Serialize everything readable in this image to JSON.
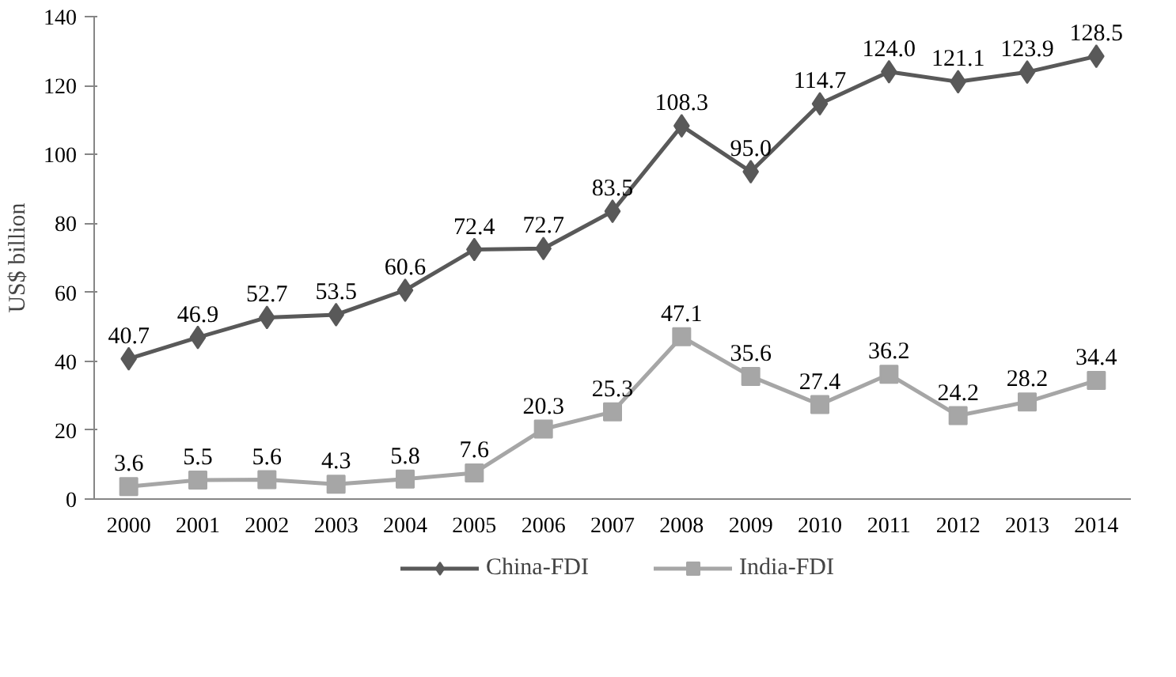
{
  "chart_data": {
    "type": "line",
    "ylabel": "US$ billion",
    "categories": [
      "2000",
      "2001",
      "2002",
      "2003",
      "2004",
      "2005",
      "2006",
      "2007",
      "2008",
      "2009",
      "2010",
      "2011",
      "2012",
      "2013",
      "2014"
    ],
    "series": [
      {
        "name": "China-FDI",
        "color": "#595959",
        "marker": "diamond",
        "values": [
          40.7,
          46.9,
          52.7,
          53.5,
          60.6,
          72.4,
          72.7,
          83.5,
          108.3,
          95.0,
          114.7,
          124.0,
          121.1,
          123.9,
          128.5
        ],
        "value_labels": [
          "40.7",
          "46.9",
          "52.7",
          "53.5",
          "60.6",
          "72.4",
          "72.7",
          "83.5",
          "108.3",
          "95.0",
          "114.7",
          "124.0",
          "121.1",
          "123.9",
          "128.5"
        ]
      },
      {
        "name": "India-FDI",
        "color": "#a6a6a6",
        "marker": "square",
        "values": [
          3.6,
          5.5,
          5.6,
          4.3,
          5.8,
          7.6,
          20.3,
          25.3,
          47.1,
          35.6,
          27.4,
          36.2,
          24.2,
          28.2,
          34.4
        ],
        "value_labels": [
          "3.6",
          "5.5",
          "5.6",
          "4.3",
          "5.8",
          "7.6",
          "20.3",
          "25.3",
          "47.1",
          "35.6",
          "27.4",
          "36.2",
          "24.2",
          "28.2",
          "34.4"
        ]
      }
    ],
    "ylim": [
      0,
      140
    ],
    "yticks": [
      0,
      20,
      40,
      60,
      80,
      100,
      120,
      140
    ],
    "grid": false,
    "legend": "bottom",
    "line_style": "solid"
  }
}
